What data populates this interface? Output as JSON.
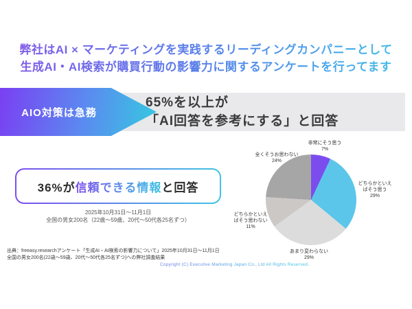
{
  "colors": {
    "purple": "#7C4DEE",
    "blue": "#5B7CEA",
    "cyan": "#3FC4E4",
    "band_gray": "#E9E9EB",
    "text_dark": "#3A3A3A"
  },
  "header": {
    "line1": "弊社はAI × マーケティングを実践するリーディングカンパニーとして",
    "line2": "生成AI・AI検索が購買行動の影響力に関するアンケートを行ってます"
  },
  "banner": {
    "tag": "AIO対策は急務",
    "line1": "65%を以上が",
    "line2": "「AI回答を参考にする」と回答"
  },
  "highlight_box": {
    "prefix": "36%が",
    "highlight": "信頼できる情報",
    "suffix": "と回答"
  },
  "survey_note": {
    "line1": "2025年10月31日〜11月1日",
    "line2": "全国の男女200名（22歳〜59歳、20代〜50代各25名ずつ）"
  },
  "chart_data": {
    "type": "pie",
    "title": "",
    "legend_position": "around-labels",
    "start_angle_deg": 0,
    "direction": "clockwise",
    "slices": [
      {
        "label": "非常にそう思う",
        "value": 7,
        "pct": "7%",
        "color": "#7C4DEE",
        "lines": [
          "非常にそう思う",
          "7%"
        ]
      },
      {
        "label": "どちらかといえばそう思う",
        "value": 29,
        "pct": "29%",
        "color": "#5BC6EA",
        "lines": [
          "どちらかといえ",
          "ばそう思う",
          "29%"
        ]
      },
      {
        "label": "あまり変わらない",
        "value": 29,
        "pct": "29%",
        "color": "#DCDCDC",
        "lines": [
          "あまり変わらない",
          "29%"
        ]
      },
      {
        "label": "どちらかといえばそう思わない",
        "value": 11,
        "pct": "11%",
        "color": "#CBC8C5",
        "lines": [
          "どちらかといえ",
          "ばそう思わない",
          "11%"
        ]
      },
      {
        "label": "全くそうお思わない",
        "value": 24,
        "pct": "24%",
        "color": "#A6A6A6",
        "lines": [
          "全くそうお思わない",
          "24%"
        ]
      }
    ]
  },
  "footer": {
    "line1": "出典：freeasy.researchアンケート「生成AI・AI検索の影響力について」2025年10月31日〜11月1日",
    "line2": "全国の男女200名(22歳〜59歳、20代〜50代各25名ずつ)への弊社調査結果",
    "copyright": "Copyright (C) Executive Marketing Japan Co., Ltd All Rights Reserved."
  }
}
